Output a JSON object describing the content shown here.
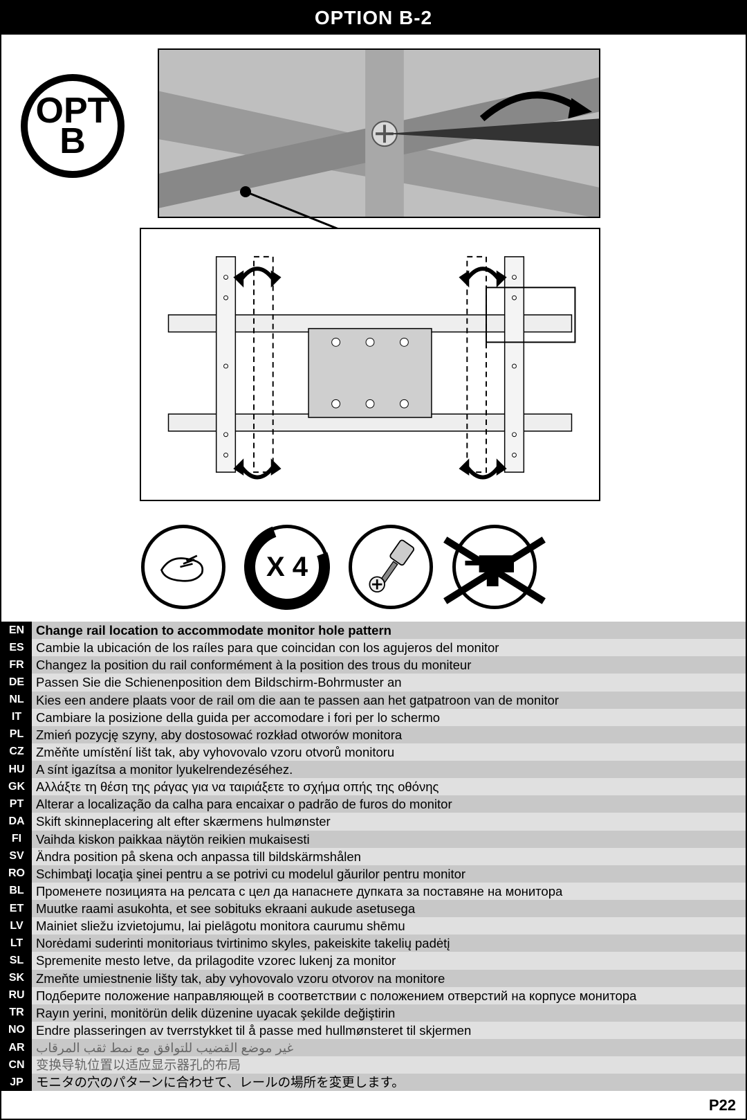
{
  "header": {
    "title": "OPTION B-2"
  },
  "badge": {
    "line1": "OPT",
    "line2": "B"
  },
  "icons": {
    "repeat_label": "X 4"
  },
  "page_number": "P22",
  "instructions": [
    {
      "code": "EN",
      "text": "Change rail location to accommodate monitor hole pattern",
      "bold": true
    },
    {
      "code": "ES",
      "text": "Cambie la ubicación de los raíles para que coincidan con los agujeros del monitor"
    },
    {
      "code": "FR",
      "text": "Changez la position du rail conformément à la position des trous du moniteur"
    },
    {
      "code": "DE",
      "text": "Passen Sie die Schienenposition dem Bildschirm-Bohrmuster an"
    },
    {
      "code": "NL",
      "text": "Kies een andere plaats voor de rail om die aan te passen aan het gatpatroon van de monitor"
    },
    {
      "code": "IT",
      "text": "Cambiare la posizione della guida per accomodare i fori per lo schermo"
    },
    {
      "code": "PL",
      "text": " Zmień pozycję szyny, aby dostosować rozkład otworów monitora"
    },
    {
      "code": "CZ",
      "text": "Změňte umístění lišt tak, aby vyhovovalo vzoru otvorů monitoru"
    },
    {
      "code": "HU",
      "text": "A sínt igazítsa a monitor lyukelrendezéséhez."
    },
    {
      "code": "GK",
      "text": "Αλλάξτε τη θέση της ράγας για να ταιριάξετε το σχήμα οπής της οθόνης"
    },
    {
      "code": "PT",
      "text": "Alterar a localização da calha para encaixar o padrão de furos do monitor"
    },
    {
      "code": "DA",
      "text": "Skift skinneplacering alt efter skærmens hulmønster"
    },
    {
      "code": "FI",
      "text": "Vaihda kiskon paikkaa näytön reikien mukaisesti"
    },
    {
      "code": "SV",
      "text": "Ändra position på skena och anpassa till bildskärmshålen"
    },
    {
      "code": "RO",
      "text": "Schimbaţi locaţia şinei pentru a se potrivi cu modelul găurilor pentru monitor"
    },
    {
      "code": "BL",
      "text": "Променете позицията на релсата с цел да напаснете дупката за поставяне на монитора"
    },
    {
      "code": "ET",
      "text": "Muutke raami asukohta, et see sobituks ekraani aukude asetusega"
    },
    {
      "code": "LV",
      "text": "Mainiet sliežu izvietojumu, lai pielāgotu monitora caurumu shēmu"
    },
    {
      "code": "LT",
      "text": "Norėdami suderinti monitoriaus tvirtinimo skyles, pakeiskite takelių padėtį"
    },
    {
      "code": "SL",
      "text": "Spremenite mesto letve, da prilagodite vzorec lukenj za monitor"
    },
    {
      "code": "SK",
      "text": "Zmeňte umiestnenie lišty tak, aby vyhovovalo vzoru otvorov na monitore"
    },
    {
      "code": "RU",
      "text": "Подберите положение направляющей в соответствии с положением отверстий на корпусе монитора"
    },
    {
      "code": "TR",
      "text": "Rayın yerini, monitörün delik düzenine uyacak şekilde değiştirin"
    },
    {
      "code": "NO",
      "text": "Endre plasseringen av tverrstykket til å passe med hullmønsteret til skjermen"
    },
    {
      "code": "AR",
      "text": "غير موضع القضيب للتوافق مع نمط ثقب المرقاب",
      "rtl": true,
      "gray": true
    },
    {
      "code": "CN",
      "text": "变换导轨位置以适应显示器孔的布局",
      "gray": true
    },
    {
      "code": "JP",
      "text": "モニタの穴のパターンに合わせて、レールの場所を変更します。"
    }
  ],
  "style": {
    "code_bg": "#000000",
    "code_fg": "#ffffff",
    "row_odd_bg": "#c8c8c8",
    "row_even_bg": "#e0e0e0",
    "text_color": "#000000",
    "gray_text_color": "#888888",
    "font_size_pt": 14
  }
}
